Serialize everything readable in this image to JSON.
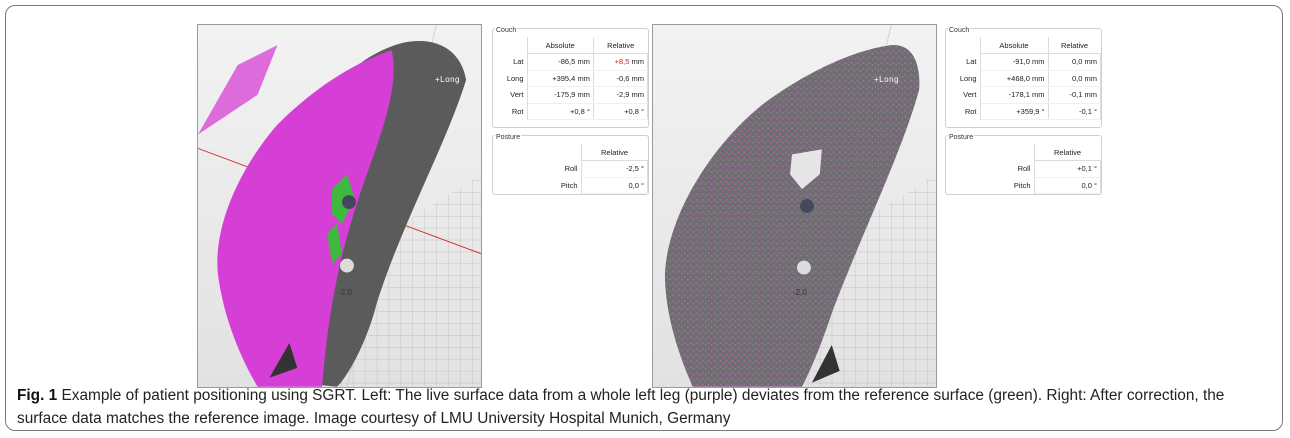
{
  "left_panel": {
    "couch_title": "Couch",
    "headers": [
      "Absolute",
      "Relative"
    ],
    "rows": [
      {
        "label": "Lat",
        "absolute": "-86,5",
        "abs_unit": "mm",
        "relative": "+8,5",
        "rel_unit": "mm"
      },
      {
        "label": "Long",
        "absolute": "+395,4",
        "abs_unit": "mm",
        "relative": "-0,6",
        "rel_unit": "mm"
      },
      {
        "label": "Vert",
        "absolute": "-175,9",
        "abs_unit": "mm",
        "relative": "-2,9",
        "rel_unit": "mm"
      },
      {
        "label": "Rot",
        "absolute": "+0,8",
        "abs_unit": "°",
        "relative": "+0,8",
        "rel_unit": "°"
      }
    ],
    "posture_title": "Posture",
    "posture_header": "Relative",
    "posture_rows": [
      {
        "label": "Roll",
        "relative": "-2,5",
        "unit": "°"
      },
      {
        "label": "Pitch",
        "relative": "0,0",
        "unit": "°"
      }
    ],
    "highlight_color": "#e02020"
  },
  "right_panel": {
    "couch_title": "Couch",
    "headers": [
      "Absolute",
      "Relative"
    ],
    "rows": [
      {
        "label": "Lat",
        "absolute": "-91,0",
        "abs_unit": "mm",
        "relative": "0,0",
        "rel_unit": "mm"
      },
      {
        "label": "Long",
        "absolute": "+468,0",
        "abs_unit": "mm",
        "relative": "0,0",
        "rel_unit": "mm"
      },
      {
        "label": "Vert",
        "absolute": "-178,1",
        "abs_unit": "mm",
        "relative": "-0,1",
        "rel_unit": "mm"
      },
      {
        "label": "Rot",
        "absolute": "+359,9",
        "abs_unit": "°",
        "relative": "-0,1",
        "rel_unit": "°"
      }
    ],
    "posture_title": "Posture",
    "posture_header": "Relative",
    "posture_rows": [
      {
        "label": "Roll",
        "relative": "+0,1",
        "unit": "°"
      },
      {
        "label": "Pitch",
        "relative": "0,0",
        "unit": "°"
      }
    ]
  },
  "viewers": {
    "long_label": "+Long",
    "distance_label": "-2.0",
    "live_surface_color": "#d63fd6",
    "reference_surface_color": "#3fb83f",
    "axis_color": "#cc3333"
  },
  "caption": {
    "figure_label": "Fig. 1",
    "text": "Example of patient positioning using SGRT. Left: The live surface data from a whole left leg (purple) deviates from the reference surface (green). Right: After correction, the surface data matches the reference image. Image courtesy of LMU University Hospital Munich, Germany"
  }
}
